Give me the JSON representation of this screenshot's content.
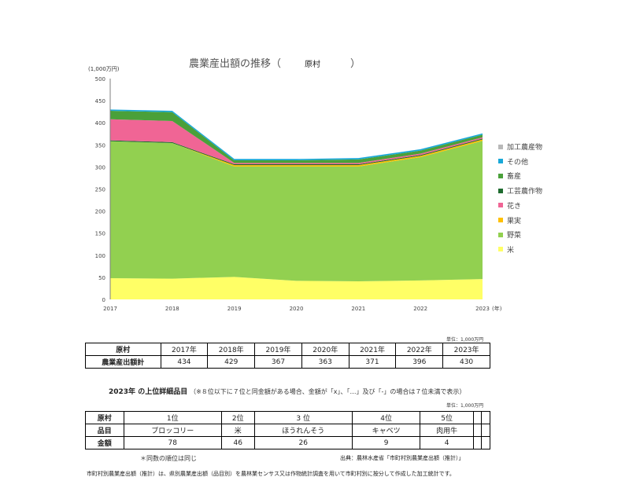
{
  "title": {
    "main": "農業産出額の推移（",
    "municipality": "原村",
    "close": "）"
  },
  "y_unit": "(1,000万円)",
  "chart_data": {
    "type": "area",
    "stacked": true,
    "title": "農業産出額の推移（原村）",
    "x": [
      "2017",
      "2018",
      "2019",
      "2020",
      "2021",
      "2022",
      "2023"
    ],
    "x_suffix": "(年)",
    "ylim": [
      0,
      500
    ],
    "y_ticks": [
      "0",
      "50",
      "100",
      "150",
      "200",
      "250",
      "300",
      "350",
      "400",
      "450",
      "500"
    ],
    "grid": false,
    "legend_position": "right",
    "series": [
      {
        "name": "米",
        "color": "#ffff66",
        "values": [
          48,
          47,
          51,
          42,
          41,
          43,
          46
        ]
      },
      {
        "name": "野菜",
        "color": "#92d050",
        "values": [
          310,
          307,
          250,
          259,
          260,
          279,
          313
        ]
      },
      {
        "name": "果実",
        "color": "#ffc000",
        "values": [
          0,
          0,
          3,
          3,
          3,
          3,
          3
        ]
      },
      {
        "name": "工芸農作物",
        "color": "#1e6b2f",
        "values": [
          2,
          2,
          2,
          2,
          2,
          2,
          2
        ]
      },
      {
        "name": "花き",
        "color": "#f06595",
        "values": [
          48,
          48,
          3,
          3,
          3,
          3,
          3
        ]
      },
      {
        "name": "畜産",
        "color": "#4aa03a",
        "values": [
          19,
          20,
          6,
          6,
          8,
          7,
          6
        ]
      },
      {
        "name": "その他",
        "color": "#18a8d8",
        "values": [
          3,
          3,
          3,
          3,
          3,
          3,
          3
        ]
      },
      {
        "name": "加工農産物",
        "color": "#b8b8b8",
        "values": [
          0,
          0,
          0,
          0,
          0,
          0,
          0
        ]
      }
    ],
    "legend_order": [
      "加工農産物",
      "その他",
      "畜産",
      "工芸農作物",
      "花き",
      "果実",
      "野菜",
      "米"
    ]
  },
  "table1": {
    "unit": "単位：1,000万円",
    "label_header": "原村",
    "years": [
      "2017年",
      "2018年",
      "2019年",
      "2020年",
      "2021年",
      "2022年",
      "2023年"
    ],
    "row_label": "農業産出額計",
    "values": [
      "434",
      "429",
      "367",
      "363",
      "371",
      "396",
      "430"
    ]
  },
  "top_items": {
    "title_year": "2023年",
    "title_main": " の上位詳細品目",
    "note": "（※８位以下に７位と同金額がある場合、金額が「x」、「…」及び「-」の場合は７位未満で表示）",
    "unit": "単位：1,000万円",
    "header_label": "原村",
    "ranks": [
      "1位",
      "2位",
      "3 位",
      "4位",
      "5位",
      "",
      ""
    ],
    "item_label": "品目",
    "items": [
      "ブロッコリー",
      "米",
      "ほうれんそう",
      "キャベツ",
      "肉用牛",
      "",
      ""
    ],
    "amount_label": "金額",
    "amounts": [
      "78",
      "46",
      "26",
      "9",
      "4",
      "",
      ""
    ]
  },
  "footnote_rank": "＊同数の順位は同じ",
  "source": "出典：農林水産省「市町村別農業産出額（推計）」",
  "description": "市町村別農業産出額（推計）は、県別農業産出額（品目別）を農林業センサス又は作物統計調査を用いて市町村別に按分して作成した加工統計です。"
}
